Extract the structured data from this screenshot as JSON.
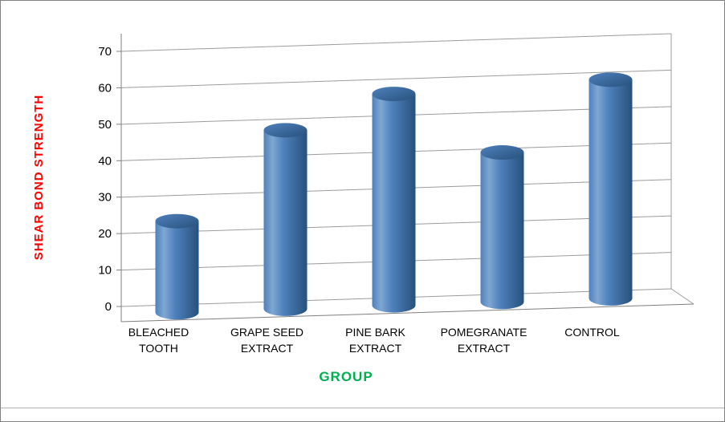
{
  "chart_data": {
    "type": "bar",
    "subtype": "3d-cylinder",
    "title": "",
    "xlabel": "GROUP",
    "ylabel": "SHEAR BOND STRENGTH",
    "categories": [
      "BLEACHED TOOTH",
      "GRAPE SEED EXTRACT",
      "PINE BARK EXTRACT",
      "POMEGRANATE EXTRACT",
      "CONTROL"
    ],
    "category_lines": [
      [
        "BLEACHED",
        "TOOTH"
      ],
      [
        "GRAPE SEED",
        "EXTRACT"
      ],
      [
        "PINE BARK",
        "EXTRACT"
      ],
      [
        "POMEGRANATE",
        "EXTRACT"
      ],
      [
        "CONTROL"
      ]
    ],
    "values": [
      25,
      49,
      58,
      41,
      60
    ],
    "ylim": [
      0,
      70
    ],
    "yticks": [
      0,
      10,
      20,
      30,
      40,
      50,
      60,
      70
    ],
    "grid": true,
    "legend": false,
    "colors": {
      "bar": "#4F81BD",
      "bar_light": "#7FA7D1",
      "bar_dark": "#27517C",
      "xlabel": "#00B050",
      "ylabel": "#FF0000",
      "tick_label": "#000000",
      "gridline": "#9B9B9B",
      "axis": "#7F7F7F",
      "frame_border": "#808080"
    }
  }
}
